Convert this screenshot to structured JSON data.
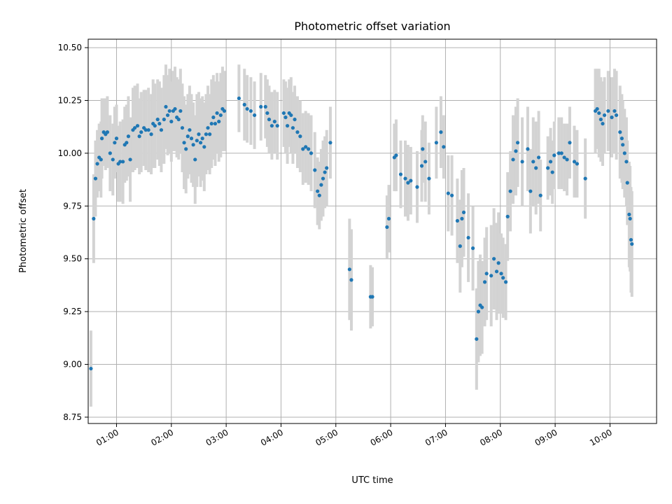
{
  "chart_data": {
    "type": "scatter",
    "title": "Photometric offset variation",
    "xlabel": "UTC time",
    "ylabel": "Photometric offset",
    "xlim": [
      "00:29",
      "10:51"
    ],
    "ylim": [
      8.72,
      10.54
    ],
    "y_ticks": [
      "8.75",
      "9.00",
      "9.25",
      "9.50",
      "9.75",
      "10.00",
      "10.25",
      "10.50"
    ],
    "x_ticks": [
      "01:00",
      "02:00",
      "03:00",
      "04:00",
      "05:00",
      "06:00",
      "07:00",
      "08:00",
      "09:00",
      "10:00"
    ],
    "grid": true,
    "colors": {
      "point": "#1f77b4",
      "errorbar": "#d3d3d3",
      "grid": "#b0b0b0"
    },
    "series": [
      {
        "values": [
          [
            "00:32",
            8.98,
            0.18
          ],
          [
            "00:35",
            9.69,
            0.21
          ],
          [
            "00:37",
            9.88,
            0.18
          ],
          [
            "00:39",
            9.95,
            0.16
          ],
          [
            "00:41",
            9.98,
            0.16
          ],
          [
            "00:43",
            9.97,
            0.18
          ],
          [
            "00:44",
            10.07,
            0.19
          ],
          [
            "00:46",
            10.1,
            0.16
          ],
          [
            "00:48",
            10.09,
            0.17
          ],
          [
            "00:50",
            10.1,
            0.17
          ],
          [
            "00:53",
            10.0,
            0.18
          ],
          [
            "00:56",
            9.97,
            0.17
          ],
          [
            "00:58",
            10.05,
            0.17
          ],
          [
            "01:00",
            10.07,
            0.16
          ],
          [
            "01:02",
            9.95,
            0.18
          ],
          [
            "01:04",
            9.96,
            0.19
          ],
          [
            "01:07",
            9.96,
            0.2
          ],
          [
            "01:09",
            10.04,
            0.18
          ],
          [
            "01:11",
            10.05,
            0.18
          ],
          [
            "01:13",
            10.08,
            0.19
          ],
          [
            "01:15",
            9.97,
            0.2
          ],
          [
            "01:18",
            10.11,
            0.2
          ],
          [
            "01:20",
            10.12,
            0.2
          ],
          [
            "01:23",
            10.13,
            0.2
          ],
          [
            "01:25",
            10.08,
            0.18
          ],
          [
            "01:27",
            10.1,
            0.19
          ],
          [
            "01:30",
            10.12,
            0.18
          ],
          [
            "01:32",
            10.11,
            0.19
          ],
          [
            "01:35",
            10.11,
            0.2
          ],
          [
            "01:38",
            10.09,
            0.19
          ],
          [
            "01:40",
            10.14,
            0.21
          ],
          [
            "01:42",
            10.13,
            0.2
          ],
          [
            "01:45",
            10.16,
            0.19
          ],
          [
            "01:47",
            10.14,
            0.2
          ],
          [
            "01:49",
            10.11,
            0.2
          ],
          [
            "01:52",
            10.16,
            0.21
          ],
          [
            "01:54",
            10.22,
            0.2
          ],
          [
            "01:56",
            10.18,
            0.19
          ],
          [
            "01:58",
            10.2,
            0.2
          ],
          [
            "02:00",
            10.15,
            0.19
          ],
          [
            "02:02",
            10.2,
            0.19
          ],
          [
            "02:04",
            10.21,
            0.2
          ],
          [
            "02:06",
            10.17,
            0.19
          ],
          [
            "02:08",
            10.16,
            0.19
          ],
          [
            "02:10",
            10.2,
            0.2
          ],
          [
            "02:12",
            10.12,
            0.21
          ],
          [
            "02:14",
            10.05,
            0.22
          ],
          [
            "02:16",
            10.02,
            0.21
          ],
          [
            "02:18",
            10.08,
            0.2
          ],
          [
            "02:20",
            10.11,
            0.21
          ],
          [
            "02:22",
            10.07,
            0.21
          ],
          [
            "02:24",
            10.04,
            0.2
          ],
          [
            "02:26",
            9.97,
            0.21
          ],
          [
            "02:28",
            10.06,
            0.22
          ],
          [
            "02:30",
            10.09,
            0.2
          ],
          [
            "02:32",
            10.05,
            0.21
          ],
          [
            "02:34",
            10.07,
            0.2
          ],
          [
            "02:36",
            10.03,
            0.21
          ],
          [
            "02:38",
            10.09,
            0.19
          ],
          [
            "02:40",
            10.12,
            0.2
          ],
          [
            "02:42",
            10.09,
            0.19
          ],
          [
            "02:44",
            10.14,
            0.21
          ],
          [
            "02:46",
            10.17,
            0.2
          ],
          [
            "02:48",
            10.14,
            0.2
          ],
          [
            "02:50",
            10.19,
            0.19
          ],
          [
            "02:52",
            10.15,
            0.19
          ],
          [
            "02:54",
            10.18,
            0.2
          ],
          [
            "02:56",
            10.21,
            0.2
          ],
          [
            "02:58",
            10.2,
            0.19
          ],
          [
            "03:14",
            10.26,
            0.16
          ],
          [
            "03:20",
            10.23,
            0.17
          ],
          [
            "03:23",
            10.21,
            0.16
          ],
          [
            "03:27",
            10.2,
            0.16
          ],
          [
            "03:31",
            10.18,
            0.16
          ],
          [
            "03:38",
            10.22,
            0.16
          ],
          [
            "03:43",
            10.22,
            0.15
          ],
          [
            "03:45",
            10.19,
            0.16
          ],
          [
            "03:47",
            10.16,
            0.16
          ],
          [
            "03:50",
            10.13,
            0.16
          ],
          [
            "03:53",
            10.15,
            0.15
          ],
          [
            "03:56",
            10.13,
            0.16
          ],
          [
            "04:03",
            10.19,
            0.16
          ],
          [
            "04:05",
            10.17,
            0.17
          ],
          [
            "04:07",
            10.13,
            0.18
          ],
          [
            "04:09",
            10.19,
            0.16
          ],
          [
            "04:11",
            10.18,
            0.18
          ],
          [
            "04:13",
            10.12,
            0.17
          ],
          [
            "04:15",
            10.16,
            0.16
          ],
          [
            "04:18",
            10.1,
            0.17
          ],
          [
            "04:21",
            10.08,
            0.17
          ],
          [
            "04:24",
            10.02,
            0.17
          ],
          [
            "04:27",
            10.03,
            0.17
          ],
          [
            "04:30",
            10.02,
            0.17
          ],
          [
            "04:33",
            10.0,
            0.18
          ],
          [
            "04:37",
            9.92,
            0.18
          ],
          [
            "04:40",
            9.82,
            0.16
          ],
          [
            "04:42",
            9.8,
            0.16
          ],
          [
            "04:44",
            9.85,
            0.17
          ],
          [
            "04:46",
            9.88,
            0.18
          ],
          [
            "04:48",
            9.91,
            0.17
          ],
          [
            "04:50",
            9.93,
            0.18
          ],
          [
            "04:54",
            10.05,
            0.17
          ],
          [
            "05:15",
            9.45,
            0.24
          ],
          [
            "05:17",
            9.4,
            0.24
          ],
          [
            "05:38",
            9.32,
            0.15
          ],
          [
            "05:40",
            9.32,
            0.14
          ],
          [
            "05:56",
            9.65,
            0.15
          ],
          [
            "05:58",
            9.69,
            0.16
          ],
          [
            "06:04",
            9.98,
            0.16
          ],
          [
            "06:06",
            9.99,
            0.17
          ],
          [
            "06:11",
            9.9,
            0.16
          ],
          [
            "06:16",
            9.88,
            0.18
          ],
          [
            "06:19",
            9.86,
            0.18
          ],
          [
            "06:22",
            9.87,
            0.16
          ],
          [
            "06:29",
            9.84,
            0.17
          ],
          [
            "06:34",
            9.94,
            0.17
          ],
          [
            "06:38",
            9.96,
            0.19
          ],
          [
            "06:42",
            9.88,
            0.17
          ],
          [
            "06:50",
            10.05,
            0.17
          ],
          [
            "06:55",
            10.1,
            0.17
          ],
          [
            "06:58",
            10.03,
            0.15
          ],
          [
            "06:35",
            10.02,
            0.16
          ],
          [
            "07:03",
            9.81,
            0.18
          ],
          [
            "07:07",
            9.8,
            0.19
          ],
          [
            "07:13",
            9.68,
            0.2
          ],
          [
            "07:16",
            9.56,
            0.22
          ],
          [
            "07:18",
            9.69,
            0.23
          ],
          [
            "07:20",
            9.72,
            0.21
          ],
          [
            "07:25",
            9.6,
            0.21
          ],
          [
            "07:30",
            9.55,
            0.2
          ],
          [
            "07:34",
            9.12,
            0.24
          ],
          [
            "07:36",
            9.25,
            0.24
          ],
          [
            "07:38",
            9.28,
            0.24
          ],
          [
            "07:40",
            9.27,
            0.22
          ],
          [
            "07:43",
            9.39,
            0.21
          ],
          [
            "07:45",
            9.43,
            0.22
          ],
          [
            "07:50",
            9.42,
            0.24
          ],
          [
            "07:53",
            9.5,
            0.24
          ],
          [
            "07:56",
            9.44,
            0.23
          ],
          [
            "07:58",
            9.48,
            0.24
          ],
          [
            "08:01",
            9.43,
            0.19
          ],
          [
            "08:03",
            9.41,
            0.19
          ],
          [
            "08:06",
            9.39,
            0.18
          ],
          [
            "08:08",
            9.7,
            0.21
          ],
          [
            "08:11",
            9.82,
            0.19
          ],
          [
            "08:14",
            9.97,
            0.21
          ],
          [
            "08:17",
            10.01,
            0.21
          ],
          [
            "08:19",
            10.05,
            0.21
          ],
          [
            "08:24",
            9.96,
            0.21
          ],
          [
            "08:30",
            10.02,
            0.2
          ],
          [
            "08:33",
            9.82,
            0.2
          ],
          [
            "08:36",
            9.96,
            0.21
          ],
          [
            "08:39",
            9.93,
            0.22
          ],
          [
            "08:42",
            9.98,
            0.22
          ],
          [
            "08:44",
            9.8,
            0.17
          ],
          [
            "08:52",
            9.93,
            0.15
          ],
          [
            "08:55",
            9.96,
            0.16
          ],
          [
            "08:57",
            9.91,
            0.15
          ],
          [
            "08:59",
            9.99,
            0.16
          ],
          [
            "09:04",
            10.0,
            0.17
          ],
          [
            "09:07",
            10.0,
            0.17
          ],
          [
            "09:10",
            9.98,
            0.16
          ],
          [
            "09:13",
            9.97,
            0.17
          ],
          [
            "09:16",
            10.05,
            0.17
          ],
          [
            "09:21",
            9.96,
            0.17
          ],
          [
            "09:24",
            9.95,
            0.16
          ],
          [
            "09:33",
            9.88,
            0.19
          ],
          [
            "09:44",
            10.2,
            0.2
          ],
          [
            "09:46",
            10.21,
            0.19
          ],
          [
            "09:48",
            10.19,
            0.21
          ],
          [
            "09:50",
            10.16,
            0.2
          ],
          [
            "09:52",
            10.14,
            0.2
          ],
          [
            "09:54",
            10.18,
            0.18
          ],
          [
            "09:58",
            10.2,
            0.19
          ],
          [
            "10:02",
            10.17,
            0.19
          ],
          [
            "10:05",
            10.2,
            0.2
          ],
          [
            "10:07",
            10.18,
            0.21
          ],
          [
            "10:11",
            10.1,
            0.22
          ],
          [
            "10:13",
            10.07,
            0.21
          ],
          [
            "10:14",
            10.04,
            0.21
          ],
          [
            "10:16",
            10.0,
            0.21
          ],
          [
            "10:18",
            9.96,
            0.21
          ],
          [
            "10:19",
            9.86,
            0.2
          ],
          [
            "10:21",
            9.71,
            0.25
          ],
          [
            "10:22",
            9.69,
            0.25
          ],
          [
            "10:23",
            9.59,
            0.25
          ],
          [
            "10:24",
            9.57,
            0.25
          ]
        ]
      }
    ]
  }
}
